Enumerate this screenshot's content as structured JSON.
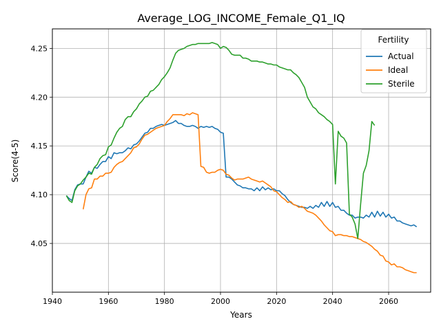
{
  "chart_data": {
    "type": "line",
    "title": "Average_LOG_INCOME_Female_Q1_IQ",
    "xlabel": "Years",
    "ylabel": "Score(4-5)",
    "xlim": [
      1940,
      2075
    ],
    "ylim": [
      4.0,
      4.27
    ],
    "xticks": [
      1940,
      1960,
      1980,
      2000,
      2020,
      2040,
      2060
    ],
    "yticks": [
      4.05,
      4.1,
      4.15,
      4.2,
      4.25
    ],
    "xtick_labels": [
      "1940",
      "1960",
      "1980",
      "2000",
      "2020",
      "2040",
      "2060"
    ],
    "ytick_labels": [
      "4.05",
      "4.10",
      "4.15",
      "4.20",
      "4.25"
    ],
    "grid": true,
    "legend": {
      "title": "Fertility",
      "placement": "top-right"
    },
    "series": [
      {
        "name": "Actual",
        "color": "#1f77b4",
        "x": [
          1945,
          1946,
          1947,
          1948,
          1949,
          1950,
          1951,
          1952,
          1953,
          1954,
          1955,
          1956,
          1957,
          1958,
          1959,
          1960,
          1961,
          1962,
          1963,
          1964,
          1965,
          1966,
          1967,
          1968,
          1969,
          1970,
          1971,
          1972,
          1973,
          1974,
          1975,
          1976,
          1977,
          1978,
          1979,
          1980,
          1981,
          1982,
          1983,
          1984,
          1985,
          1986,
          1987,
          1988,
          1989,
          1990,
          1991,
          1992,
          1993,
          1994,
          1995,
          1996,
          1997,
          1998,
          1999,
          2000,
          2001,
          2002,
          2003,
          2004,
          2005,
          2006,
          2007,
          2008,
          2009,
          2010,
          2011,
          2012,
          2013,
          2014,
          2015,
          2016,
          2017,
          2018,
          2019,
          2020,
          2021,
          2022,
          2023,
          2024,
          2025,
          2026,
          2027,
          2028,
          2029,
          2030,
          2031,
          2032,
          2033,
          2034,
          2035,
          2036,
          2037,
          2038,
          2039,
          2040,
          2041,
          2042,
          2043,
          2044,
          2045,
          2046,
          2047,
          2048,
          2049,
          2050,
          2051,
          2052,
          2053,
          2054,
          2055,
          2056,
          2057,
          2058,
          2059,
          2060,
          2061,
          2062,
          2063,
          2064,
          2065,
          2066,
          2067,
          2068,
          2069,
          2070
        ],
        "y": [
          4.099,
          4.096,
          4.094,
          4.105,
          4.11,
          4.111,
          4.111,
          4.118,
          4.124,
          4.122,
          4.128,
          4.127,
          4.131,
          4.134,
          4.134,
          4.139,
          4.137,
          4.143,
          4.142,
          4.143,
          4.143,
          4.145,
          4.148,
          4.147,
          4.151,
          4.152,
          4.155,
          4.159,
          4.163,
          4.164,
          4.168,
          4.168,
          4.17,
          4.171,
          4.172,
          4.171,
          4.172,
          4.173,
          4.174,
          4.176,
          4.173,
          4.173,
          4.171,
          4.17,
          4.17,
          4.171,
          4.17,
          4.168,
          4.17,
          4.169,
          4.17,
          4.169,
          4.17,
          4.168,
          4.167,
          4.164,
          4.163,
          4.118,
          4.118,
          4.116,
          4.113,
          4.11,
          4.109,
          4.107,
          4.107,
          4.106,
          4.106,
          4.104,
          4.107,
          4.104,
          4.108,
          4.105,
          4.107,
          4.105,
          4.106,
          4.104,
          4.104,
          4.101,
          4.099,
          4.095,
          4.092,
          4.09,
          4.089,
          4.088,
          4.087,
          4.087,
          4.086,
          4.088,
          4.086,
          4.089,
          4.087,
          4.092,
          4.088,
          4.093,
          4.088,
          4.092,
          4.087,
          4.088,
          4.084,
          4.084,
          4.081,
          4.079,
          4.079,
          4.076,
          4.077,
          4.077,
          4.076,
          4.079,
          4.077,
          4.082,
          4.077,
          4.083,
          4.078,
          4.082,
          4.077,
          4.08,
          4.076,
          4.077,
          4.073,
          4.073,
          4.071,
          4.07,
          4.069,
          4.068,
          4.069,
          4.067
        ],
        "y_note": ""
      },
      {
        "name": "Ideal",
        "color": "#ff7f0e",
        "x": [
          1951,
          1952,
          1953,
          1954,
          1955,
          1956,
          1957,
          1958,
          1959,
          1960,
          1961,
          1962,
          1963,
          1964,
          1965,
          1966,
          1967,
          1968,
          1969,
          1970,
          1971,
          1972,
          1973,
          1974,
          1975,
          1976,
          1977,
          1978,
          1979,
          1980,
          1981,
          1982,
          1983,
          1984,
          1985,
          1986,
          1987,
          1988,
          1989,
          1990,
          1991,
          1992,
          1993,
          1994,
          1995,
          1996,
          1997,
          1998,
          1999,
          2000,
          2001,
          2002,
          2003,
          2004,
          2005,
          2006,
          2007,
          2008,
          2009,
          2010,
          2011,
          2012,
          2013,
          2014,
          2015,
          2016,
          2017,
          2018,
          2019,
          2020,
          2021,
          2022,
          2023,
          2024,
          2025,
          2026,
          2027,
          2028,
          2029,
          2030,
          2031,
          2032,
          2033,
          2034,
          2035,
          2036,
          2037,
          2038,
          2039,
          2040,
          2041,
          2042,
          2043,
          2044,
          2045,
          2046,
          2047,
          2048,
          2049,
          2050,
          2051,
          2052,
          2053,
          2054,
          2055,
          2056,
          2057,
          2058,
          2059,
          2060,
          2061,
          2062,
          2063,
          2064,
          2065,
          2066,
          2067,
          2068,
          2069,
          2070
        ],
        "y": [
          4.085,
          4.1,
          4.106,
          4.107,
          4.116,
          4.116,
          4.119,
          4.119,
          4.122,
          4.122,
          4.123,
          4.128,
          4.131,
          4.133,
          4.134,
          4.137,
          4.14,
          4.143,
          4.148,
          4.149,
          4.152,
          4.157,
          4.161,
          4.162,
          4.164,
          4.166,
          4.168,
          4.169,
          4.17,
          4.171,
          4.175,
          4.178,
          4.182,
          4.182,
          4.182,
          4.182,
          4.181,
          4.183,
          4.182,
          4.184,
          4.183,
          4.182,
          4.129,
          4.128,
          4.123,
          4.122,
          4.123,
          4.123,
          4.125,
          4.126,
          4.125,
          4.121,
          4.12,
          4.117,
          4.115,
          4.116,
          4.116,
          4.116,
          4.117,
          4.118,
          4.116,
          4.115,
          4.114,
          4.113,
          4.114,
          4.112,
          4.11,
          4.108,
          4.104,
          4.103,
          4.1,
          4.097,
          4.095,
          4.092,
          4.093,
          4.09,
          4.089,
          4.087,
          4.088,
          4.086,
          4.083,
          4.082,
          4.081,
          4.079,
          4.076,
          4.073,
          4.069,
          4.066,
          4.063,
          4.062,
          4.058,
          4.059,
          4.059,
          4.058,
          4.058,
          4.057,
          4.057,
          4.056,
          4.055,
          4.054,
          4.052,
          4.051,
          4.049,
          4.047,
          4.044,
          4.042,
          4.038,
          4.037,
          4.032,
          4.031,
          4.028,
          4.029,
          4.026,
          4.026,
          4.025,
          4.023,
          4.022,
          4.021,
          4.02,
          4.02
        ]
      },
      {
        "name": "Sterile",
        "color": "#2ca02c",
        "x": [
          1945,
          1946,
          1947,
          1948,
          1949,
          1950,
          1951,
          1952,
          1953,
          1954,
          1955,
          1956,
          1957,
          1958,
          1959,
          1960,
          1961,
          1962,
          1963,
          1964,
          1965,
          1966,
          1967,
          1968,
          1969,
          1970,
          1971,
          1972,
          1973,
          1974,
          1975,
          1976,
          1977,
          1978,
          1979,
          1980,
          1981,
          1982,
          1983,
          1984,
          1985,
          1986,
          1987,
          1988,
          1989,
          1990,
          1991,
          1992,
          1993,
          1994,
          1995,
          1996,
          1997,
          1998,
          1999,
          2000,
          2001,
          2002,
          2003,
          2004,
          2005,
          2006,
          2007,
          2008,
          2009,
          2010,
          2011,
          2012,
          2013,
          2014,
          2015,
          2016,
          2017,
          2018,
          2019,
          2020,
          2021,
          2022,
          2023,
          2024,
          2025,
          2026,
          2027,
          2028,
          2029,
          2030,
          2031,
          2032,
          2033,
          2034,
          2035,
          2036,
          2037,
          2038,
          2039,
          2040,
          2041,
          2042,
          2043,
          2044,
          2045,
          2046,
          2047,
          2048,
          2049,
          2050,
          2051,
          2052,
          2053,
          2054,
          2055
        ],
        "y": [
          4.099,
          4.094,
          4.092,
          4.104,
          4.109,
          4.111,
          4.115,
          4.118,
          4.122,
          4.121,
          4.128,
          4.131,
          4.137,
          4.14,
          4.141,
          4.149,
          4.151,
          4.158,
          4.164,
          4.168,
          4.17,
          4.177,
          4.18,
          4.18,
          4.185,
          4.188,
          4.193,
          4.196,
          4.2,
          4.201,
          4.206,
          4.207,
          4.21,
          4.213,
          4.218,
          4.221,
          4.225,
          4.23,
          4.238,
          4.245,
          4.248,
          4.249,
          4.25,
          4.252,
          4.253,
          4.254,
          4.254,
          4.255,
          4.255,
          4.255,
          4.255,
          4.255,
          4.256,
          4.255,
          4.254,
          4.25,
          4.252,
          4.251,
          4.248,
          4.244,
          4.243,
          4.243,
          4.243,
          4.24,
          4.24,
          4.239,
          4.237,
          4.237,
          4.237,
          4.236,
          4.236,
          4.235,
          4.234,
          4.234,
          4.233,
          4.233,
          4.231,
          4.23,
          4.229,
          4.228,
          4.228,
          4.225,
          4.223,
          4.22,
          4.215,
          4.21,
          4.2,
          4.195,
          4.19,
          4.188,
          4.184,
          4.182,
          4.18,
          4.177,
          4.175,
          4.172,
          4.111,
          4.165,
          4.16,
          4.158,
          4.153,
          4.08,
          4.077,
          4.07,
          4.055,
          4.09,
          4.122,
          4.13,
          4.145,
          4.175,
          4.171
        ]
      }
    ]
  }
}
